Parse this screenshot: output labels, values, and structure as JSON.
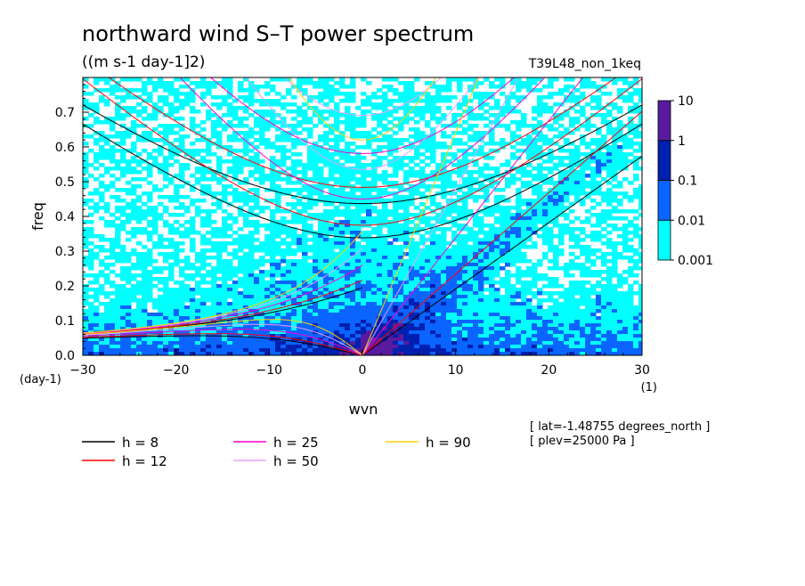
{
  "chart_data": {
    "type": "heatmap",
    "title": "northward wind S–T power spectrum",
    "subtitle": "((m s-1 day-1]2)",
    "run_label": "T39L48_non_1keq",
    "xlabel": "wvn",
    "xunit": "(1)",
    "ylabel": "freq",
    "yunit": "(day-1)",
    "xlim": [
      -30,
      30
    ],
    "ylim": [
      0,
      0.8
    ],
    "xticks": [
      "-30",
      "-20",
      "-10",
      "0",
      "10",
      "20",
      "30"
    ],
    "yticks": [
      "0.0",
      "0.1",
      "0.2",
      "0.3",
      "0.4",
      "0.5",
      "0.6",
      "0.7"
    ],
    "contour_levels": [
      "0.001",
      "0.01",
      "0.1",
      "1",
      "10"
    ],
    "level_colors": [
      "#00ffff",
      "#0a64ff",
      "#0020b0",
      "#5a1aa0"
    ],
    "dispersion_curves": [
      {
        "label": "h =  8",
        "h": 8,
        "color": "#000000"
      },
      {
        "label": "h = 12",
        "h": 12,
        "color": "#ff0000"
      },
      {
        "label": "h = 25",
        "h": 25,
        "color": "#ff00c8"
      },
      {
        "label": "h = 50",
        "h": 50,
        "color": "#e6a0ff"
      },
      {
        "label": "h = 90",
        "h": 90,
        "color": "#ffd000"
      }
    ],
    "annotations": [
      "[ lat=-1.48755 degrees_north ]",
      "[ plev=25000 Pa ]"
    ]
  }
}
